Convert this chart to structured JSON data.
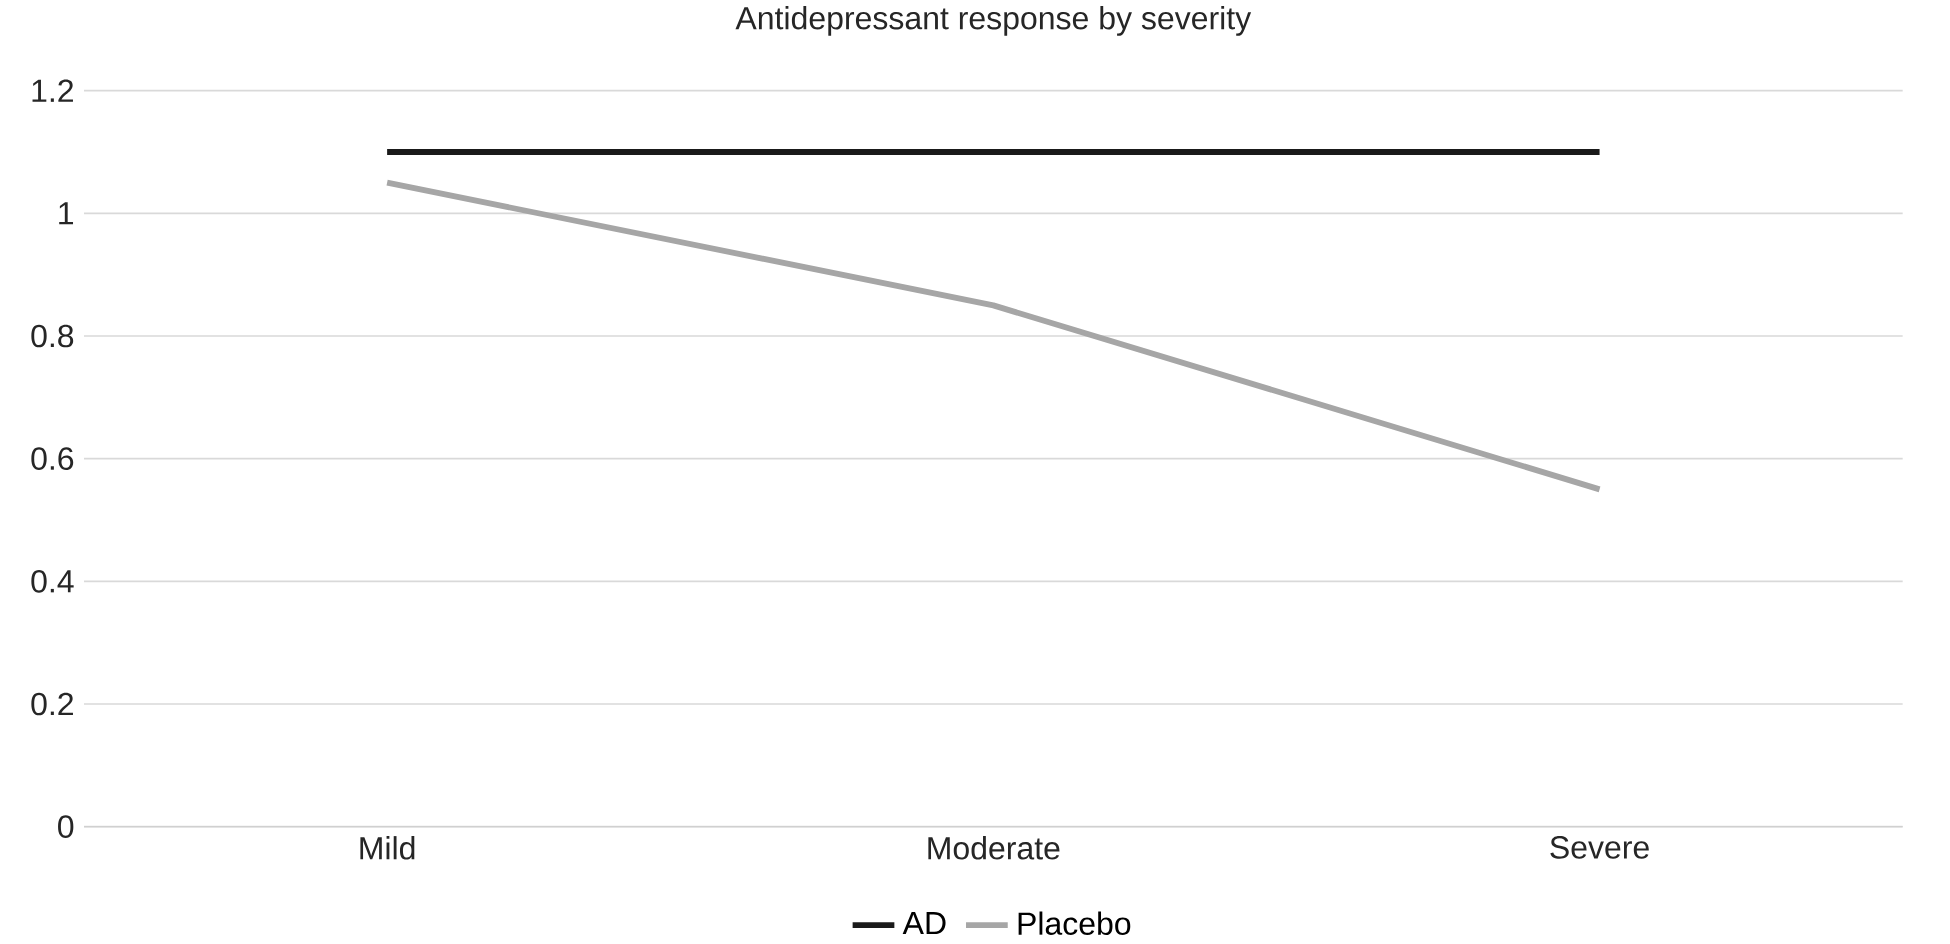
{
  "chart_data": {
    "type": "line",
    "title": "Antidepressant response by severity",
    "categories": [
      "Mild",
      "Moderate",
      "Severe"
    ],
    "series": [
      {
        "name": "AD",
        "color": "#1a1a1a",
        "values": [
          1.1,
          1.1,
          1.1
        ]
      },
      {
        "name": "Placebo",
        "color": "#a6a6a6",
        "values": [
          1.05,
          0.85,
          0.55
        ]
      }
    ],
    "ylim": [
      0,
      1.2
    ],
    "yticks": [
      0,
      0.2,
      0.4,
      0.6,
      0.8,
      1,
      1.2
    ],
    "grid": "y",
    "legend": "bottom"
  }
}
